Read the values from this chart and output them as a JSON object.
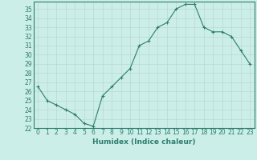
{
  "xlabel": "Humidex (Indice chaleur)",
  "x": [
    0,
    1,
    2,
    3,
    4,
    5,
    6,
    7,
    8,
    9,
    10,
    11,
    12,
    13,
    14,
    15,
    16,
    17,
    18,
    19,
    20,
    21,
    22,
    23
  ],
  "y": [
    26.5,
    25.0,
    24.5,
    24.0,
    23.5,
    22.5,
    22.2,
    25.5,
    26.5,
    27.5,
    28.5,
    31.0,
    31.5,
    33.0,
    33.5,
    35.0,
    35.5,
    35.5,
    33.0,
    32.5,
    32.5,
    32.0,
    30.5,
    29.0
  ],
  "ylim": [
    22,
    35.8
  ],
  "yticks": [
    22,
    23,
    24,
    25,
    26,
    27,
    28,
    29,
    30,
    31,
    32,
    33,
    34,
    35
  ],
  "xticks": [
    0,
    1,
    2,
    3,
    4,
    5,
    6,
    7,
    8,
    9,
    10,
    11,
    12,
    13,
    14,
    15,
    16,
    17,
    18,
    19,
    20,
    21,
    22,
    23
  ],
  "line_color": "#2d7d6e",
  "marker": "+",
  "bg_color": "#cceee8",
  "grid_color": "#b8d8d4",
  "border_color": "#2d7d6e",
  "tick_label_fontsize": 5.5,
  "xlabel_fontsize": 6.5
}
